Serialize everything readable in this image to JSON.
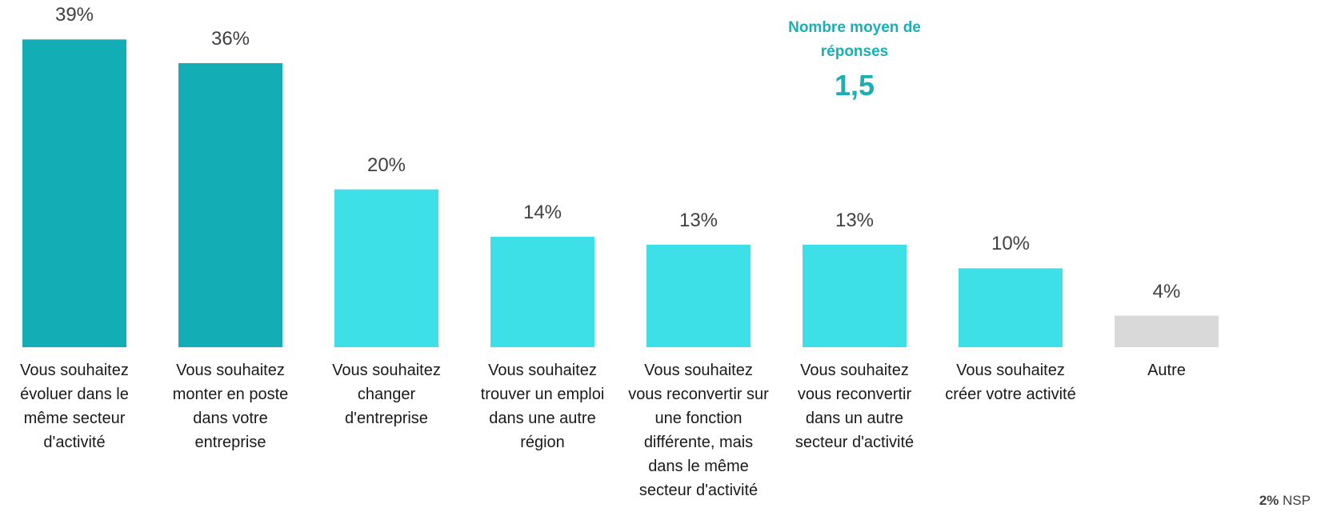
{
  "chart_data": {
    "type": "bar",
    "categories": [
      "Vous souhaitez évoluer dans le même secteur d'activité",
      "Vous souhaitez monter en poste dans votre entreprise",
      "Vous souhaitez changer d'entreprise",
      "Vous souhaitez trouver un emploi dans une autre région",
      "Vous souhaitez vous reconvertir sur une fonction différente, mais dans le même secteur d'activité",
      "Vous souhaitez vous reconvertir dans un autre secteur d'activité",
      "Vous souhaitez créer votre activité",
      "Autre"
    ],
    "values": [
      39,
      36,
      20,
      14,
      13,
      13,
      10,
      4
    ],
    "value_labels": [
      "39%",
      "36%",
      "20%",
      "14%",
      "13%",
      "13%",
      "10%",
      "4%"
    ],
    "colors": [
      "#13aeb5",
      "#13aeb5",
      "#3ee0e8",
      "#3ee0e8",
      "#3ee0e8",
      "#3ee0e8",
      "#3ee0e8",
      "#d9d9d9"
    ],
    "ylim": [
      0,
      44
    ],
    "annotation": {
      "label": "Nombre moyen de réponses",
      "value": "1,5"
    },
    "note": {
      "value_label": "2%",
      "text": "NSP"
    }
  }
}
